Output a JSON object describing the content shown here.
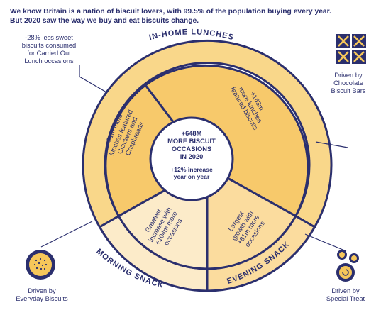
{
  "intro": {
    "line1": "We know Britain is a nation of biscuit lovers, with 99.5% of the population buying every year.",
    "line2": "But 2020 saw the way we buy and eat biscuits change."
  },
  "center": {
    "title_lines": [
      "+648M",
      "MORE BISCUIT",
      "OCCASIONS",
      "IN 2020"
    ],
    "sub_lines": [
      "+12% increase",
      "year on year"
    ]
  },
  "ring_labels": {
    "top": "IN-HOME LUNCHES",
    "bottom_left": "MORNING SNACK",
    "bottom_right": "EVENING SNACK"
  },
  "segments": {
    "lunch_left": {
      "lines": [
        "+91m more",
        "lunches featured",
        "Crackers and",
        "Crispbreads"
      ]
    },
    "lunch_right": {
      "lines": [
        "+163m",
        "more lunches",
        "featured biscuits"
      ]
    },
    "morning": {
      "lines": [
        "Greatest",
        "increase with",
        "+104m more",
        "occasions"
      ]
    },
    "evening": {
      "lines": [
        "Largest",
        "growth with",
        "+81m more",
        "occasions"
      ]
    }
  },
  "notes": {
    "top_left": [
      "-28% less sweet",
      "biscuits consumed",
      "for Carried Out",
      "Lunch occasions"
    ],
    "top_right": [
      "Driven by",
      "Chocolate",
      "Biscuit Bars"
    ],
    "bottom_left": [
      "Driven by",
      "Everyday Biscuits"
    ],
    "bottom_right": [
      "Driven by",
      "Special Treat"
    ]
  },
  "icons": {
    "top_right": "chocolate-bars-icon",
    "bottom_left": "round-biscuit-icon",
    "bottom_right": "special-treat-biscuits-icon"
  },
  "colors": {
    "navy": "#2b2f6e",
    "lunch": "#f7c96b",
    "lunch_ring": "#f9d78a",
    "morning": "#fcebc9",
    "evening": "#fbdc9e",
    "biscuit_icon": "#f6c75a"
  }
}
